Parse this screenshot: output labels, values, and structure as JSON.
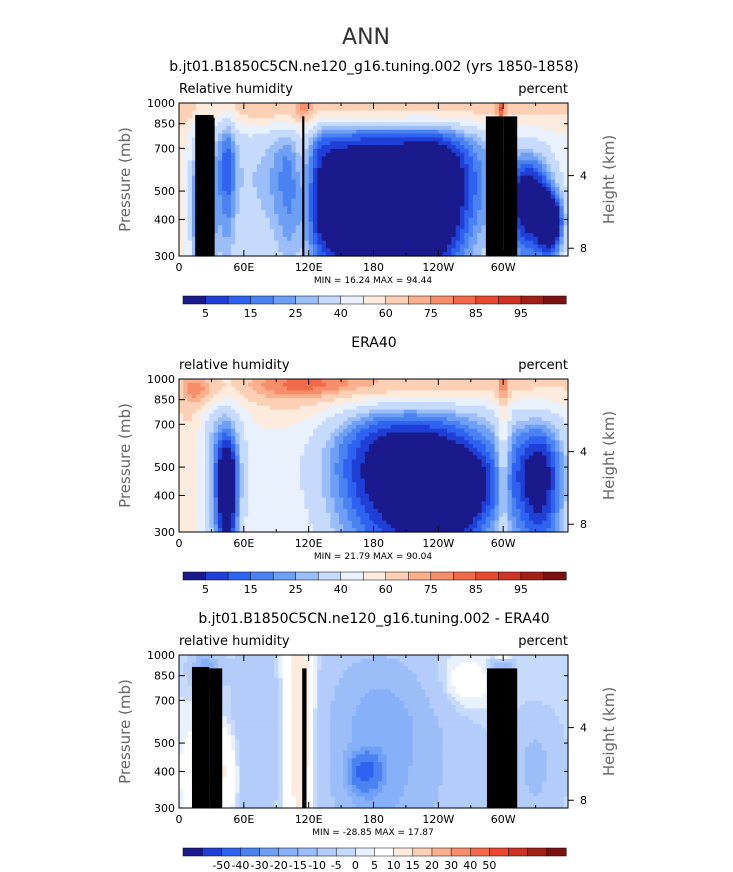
{
  "figure_title": "ANN",
  "colors": {
    "rh_scale": [
      "#1a1a8c",
      "#1f3fd6",
      "#2e62f0",
      "#4a82f2",
      "#6d9ff5",
      "#9bbdf8",
      "#c6dbfb",
      "#e9f1fd",
      "#fdebdd",
      "#fcd0b4",
      "#fab08d",
      "#f78e6a",
      "#f26a49",
      "#e8492e",
      "#cc3322",
      "#a21f16",
      "#7a1010"
    ],
    "diff_scale": [
      "#1a1a8c",
      "#1f3fd6",
      "#2e62f0",
      "#4a82f2",
      "#6d9ff5",
      "#86b0f7",
      "#9bbdf8",
      "#b3ccfa",
      "#c6dbfb",
      "#e9f1fd",
      "#ffffff",
      "#fdebdd",
      "#fcd0b4",
      "#fab08d",
      "#f78e6a",
      "#f26a49",
      "#e8492e",
      "#cc3322",
      "#a21f16",
      "#7a1010"
    ],
    "topo": "#000000"
  },
  "chart_data": [
    {
      "type": "heatmap",
      "title": "b.jt01.B1850C5CN.ne120_g16.tuning.002 (yrs 1850-1858)",
      "left_label": "Relative humidity",
      "right_label": "percent",
      "ylabel": "Pressure (mb)",
      "ylabel_right": "Height (km)",
      "yticks": [
        "300",
        "400",
        "500",
        "700",
        "850",
        "1000"
      ],
      "ytick_values": [
        300,
        400,
        500,
        700,
        850,
        1000
      ],
      "yticks_right": [
        "8",
        "4"
      ],
      "ytick_right_values": [
        8,
        4
      ],
      "xticks": [
        "0",
        "60E",
        "120E",
        "180",
        "120W",
        "60W"
      ],
      "xtick_values": [
        0,
        60,
        120,
        180,
        240,
        300
      ],
      "xlim": [
        0,
        360
      ],
      "ylim": [
        1000,
        300
      ],
      "stats": "MIN =   16.24  MAX =   94.44",
      "colorbar_labels": [
        "5",
        "15",
        "25",
        "40",
        "60",
        "75",
        "85",
        "95"
      ],
      "colorbar_positions": [
        0.5,
        2.5,
        4.5,
        6.5,
        8.5,
        10.5,
        12.5,
        14.5
      ],
      "blobs": [
        {
          "lon": 185,
          "p": 385,
          "v": 7,
          "dx": 44,
          "dp": 120,
          "w": 2.2
        },
        {
          "lon": 175,
          "p": 560,
          "v": -4,
          "dx": 130,
          "dp": 420,
          "w": 1
        },
        {
          "lon": 22,
          "p": 420,
          "v": 8,
          "dx": 6,
          "dp": 150,
          "w": 1.2
        },
        {
          "lon": 22,
          "p": 480,
          "v": 6,
          "dx": 14,
          "dp": 420,
          "w": -1.5
        },
        {
          "lon": 325,
          "p": 460,
          "v": 9,
          "dx": 22,
          "dp": 200,
          "w": 1.3
        },
        {
          "lon": 240,
          "p": 500,
          "v": 10,
          "dx": 32,
          "dp": 300,
          "w": 0.5
        },
        {
          "lon": 180,
          "p": 950,
          "v": 85,
          "dx": 170,
          "dp": 130,
          "w": 2.5
        },
        {
          "lon": 115,
          "p": 700,
          "v": 75,
          "dx": 10,
          "dp": 500,
          "w": 2
        },
        {
          "lon": 5,
          "p": 620,
          "v": 65,
          "dx": 14,
          "dp": 600,
          "w": 1.4
        },
        {
          "lon": 26,
          "p": 700,
          "v": 80,
          "dx": 5,
          "dp": 200,
          "w": 1.6
        },
        {
          "lon": 80,
          "p": 650,
          "v": 62,
          "dx": 22,
          "dp": 600,
          "w": 1
        },
        {
          "lon": 298,
          "p": 750,
          "v": 82,
          "dx": 4,
          "dp": 450,
          "w": 2
        },
        {
          "lon": 45,
          "p": 640,
          "v": 20,
          "dx": 8,
          "dp": 400,
          "w": -1.2
        },
        {
          "lon": 345,
          "p": 390,
          "v": 10,
          "dx": 12,
          "dp": 100,
          "w": 1.4
        }
      ],
      "base": 55,
      "topography": [
        {
          "lon0": 15,
          "lon1": 32,
          "p": 910
        },
        {
          "lon0": 19,
          "lon1": 28,
          "p": 860
        },
        {
          "lon0": 28,
          "lon1": 33,
          "p": 890
        },
        {
          "lon0": 114,
          "lon1": 116,
          "p": 900
        },
        {
          "lon0": 284,
          "lon1": 300,
          "p": 900
        },
        {
          "lon0": 300,
          "lon1": 313,
          "p": 900
        }
      ]
    },
    {
      "type": "heatmap",
      "title": "ERA40",
      "left_label": "relative humidity",
      "right_label": "percent",
      "ylabel": "Pressure (mb)",
      "ylabel_right": "Height (km)",
      "yticks": [
        "300",
        "400",
        "500",
        "700",
        "850",
        "1000"
      ],
      "ytick_values": [
        300,
        400,
        500,
        700,
        850,
        1000
      ],
      "yticks_right": [
        "8",
        "4"
      ],
      "ytick_right_values": [
        8,
        4
      ],
      "xticks": [
        "0",
        "60E",
        "120E",
        "180",
        "120W",
        "60W"
      ],
      "xtick_values": [
        0,
        60,
        120,
        180,
        240,
        300
      ],
      "xlim": [
        0,
        360
      ],
      "ylim": [
        1000,
        300
      ],
      "stats": "MIN =   21.79  MAX =   90.04",
      "colorbar_labels": [
        "5",
        "15",
        "25",
        "40",
        "60",
        "75",
        "85",
        "95"
      ],
      "colorbar_positions": [
        0.5,
        2.5,
        4.5,
        6.5,
        8.5,
        10.5,
        12.5,
        14.5
      ],
      "blobs": [
        {
          "lon": 245,
          "p": 420,
          "v": 15,
          "dx": 38,
          "dp": 130,
          "w": 2
        },
        {
          "lon": 210,
          "p": 500,
          "v": -5,
          "dx": 110,
          "dp": 380,
          "w": 1
        },
        {
          "lon": 45,
          "p": 420,
          "v": 18,
          "dx": 10,
          "dp": 200,
          "w": 1.5
        },
        {
          "lon": 40,
          "p": 520,
          "v": 6,
          "dx": 20,
          "dp": 500,
          "w": -1.3
        },
        {
          "lon": 335,
          "p": 450,
          "v": 15,
          "dx": 25,
          "dp": 280,
          "w": 1.4
        },
        {
          "lon": 180,
          "p": 950,
          "v": 82,
          "dx": 170,
          "dp": 140,
          "w": 2.4
        },
        {
          "lon": 115,
          "p": 650,
          "v": 68,
          "dx": 45,
          "dp": 700,
          "w": 1
        },
        {
          "lon": 300,
          "p": 700,
          "v": 75,
          "dx": 6,
          "dp": 450,
          "w": 1.8
        },
        {
          "lon": 25,
          "p": 900,
          "v": 72,
          "dx": 18,
          "dp": 120,
          "w": 1.5
        },
        {
          "lon": 10,
          "p": 600,
          "v": 63,
          "dx": 10,
          "dp": 600,
          "w": 1
        }
      ],
      "base": 55,
      "topography": []
    },
    {
      "type": "heatmap",
      "title": "b.jt01.B1850C5CN.ne120_g16.tuning.002 - ERA40",
      "left_label": "relative humidity",
      "right_label": "percent",
      "ylabel": "Pressure (mb)",
      "ylabel_right": "Height (km)",
      "yticks": [
        "300",
        "400",
        "500",
        "700",
        "850",
        "1000"
      ],
      "ytick_values": [
        300,
        400,
        500,
        700,
        850,
        1000
      ],
      "yticks_right": [
        "8",
        "4"
      ],
      "ytick_right_values": [
        8,
        4
      ],
      "xticks": [
        "0",
        "60E",
        "120E",
        "180",
        "120W",
        "60W"
      ],
      "xtick_values": [
        0,
        60,
        120,
        180,
        240,
        300
      ],
      "xlim": [
        0,
        360
      ],
      "ylim": [
        1000,
        300
      ],
      "stats": "MIN =  -28.85  MAX =   17.87",
      "colorbar_labels": [
        "-50",
        "-40",
        "-30",
        "-20",
        "-15",
        "-10",
        "-5",
        "0",
        "5",
        "10",
        "15",
        "20",
        "30",
        "40",
        "50"
      ],
      "colorbar_positions": [
        1.5,
        2.5,
        3.5,
        4.5,
        5.5,
        6.5,
        7.5,
        8.5,
        9.5,
        10.5,
        11.5,
        12.5,
        13.5,
        14.5,
        15.5
      ],
      "blobs": [
        {
          "lon": 172,
          "p": 400,
          "v": -25,
          "dx": 14,
          "dp": 60,
          "w": 2
        },
        {
          "lon": 180,
          "p": 520,
          "v": -10,
          "dx": 45,
          "dp": 500,
          "w": 1.3
        },
        {
          "lon": 220,
          "p": 520,
          "v": -5,
          "dx": 60,
          "dp": 400,
          "w": 1
        },
        {
          "lon": 300,
          "p": 700,
          "v": 15,
          "dx": 6,
          "dp": 500,
          "w": 2
        },
        {
          "lon": 112,
          "p": 650,
          "v": 10,
          "dx": 12,
          "dp": 600,
          "w": 1.5
        },
        {
          "lon": 30,
          "p": 400,
          "v": 8,
          "dx": 20,
          "dp": 150,
          "w": 1
        },
        {
          "lon": 25,
          "p": 900,
          "v": -15,
          "dx": 12,
          "dp": 100,
          "w": 1.5
        },
        {
          "lon": 300,
          "p": 900,
          "v": -20,
          "dx": 8,
          "dp": 80,
          "w": 1.5
        },
        {
          "lon": 330,
          "p": 420,
          "v": -6,
          "dx": 22,
          "dp": 200,
          "w": 1.2
        },
        {
          "lon": 260,
          "p": 780,
          "v": 4,
          "dx": 30,
          "dp": 200,
          "w": 1
        },
        {
          "lon": 70,
          "p": 600,
          "v": -4,
          "dx": 20,
          "dp": 500,
          "w": 1
        }
      ],
      "base": 0,
      "topography": [
        {
          "lon0": 12,
          "lon1": 28,
          "p": 910
        },
        {
          "lon0": 19,
          "lon1": 28,
          "p": 860
        },
        {
          "lon0": 28,
          "lon1": 40,
          "p": 900
        },
        {
          "lon0": 114,
          "lon1": 118,
          "p": 900
        },
        {
          "lon0": 285,
          "lon1": 313,
          "p": 900
        }
      ]
    }
  ]
}
